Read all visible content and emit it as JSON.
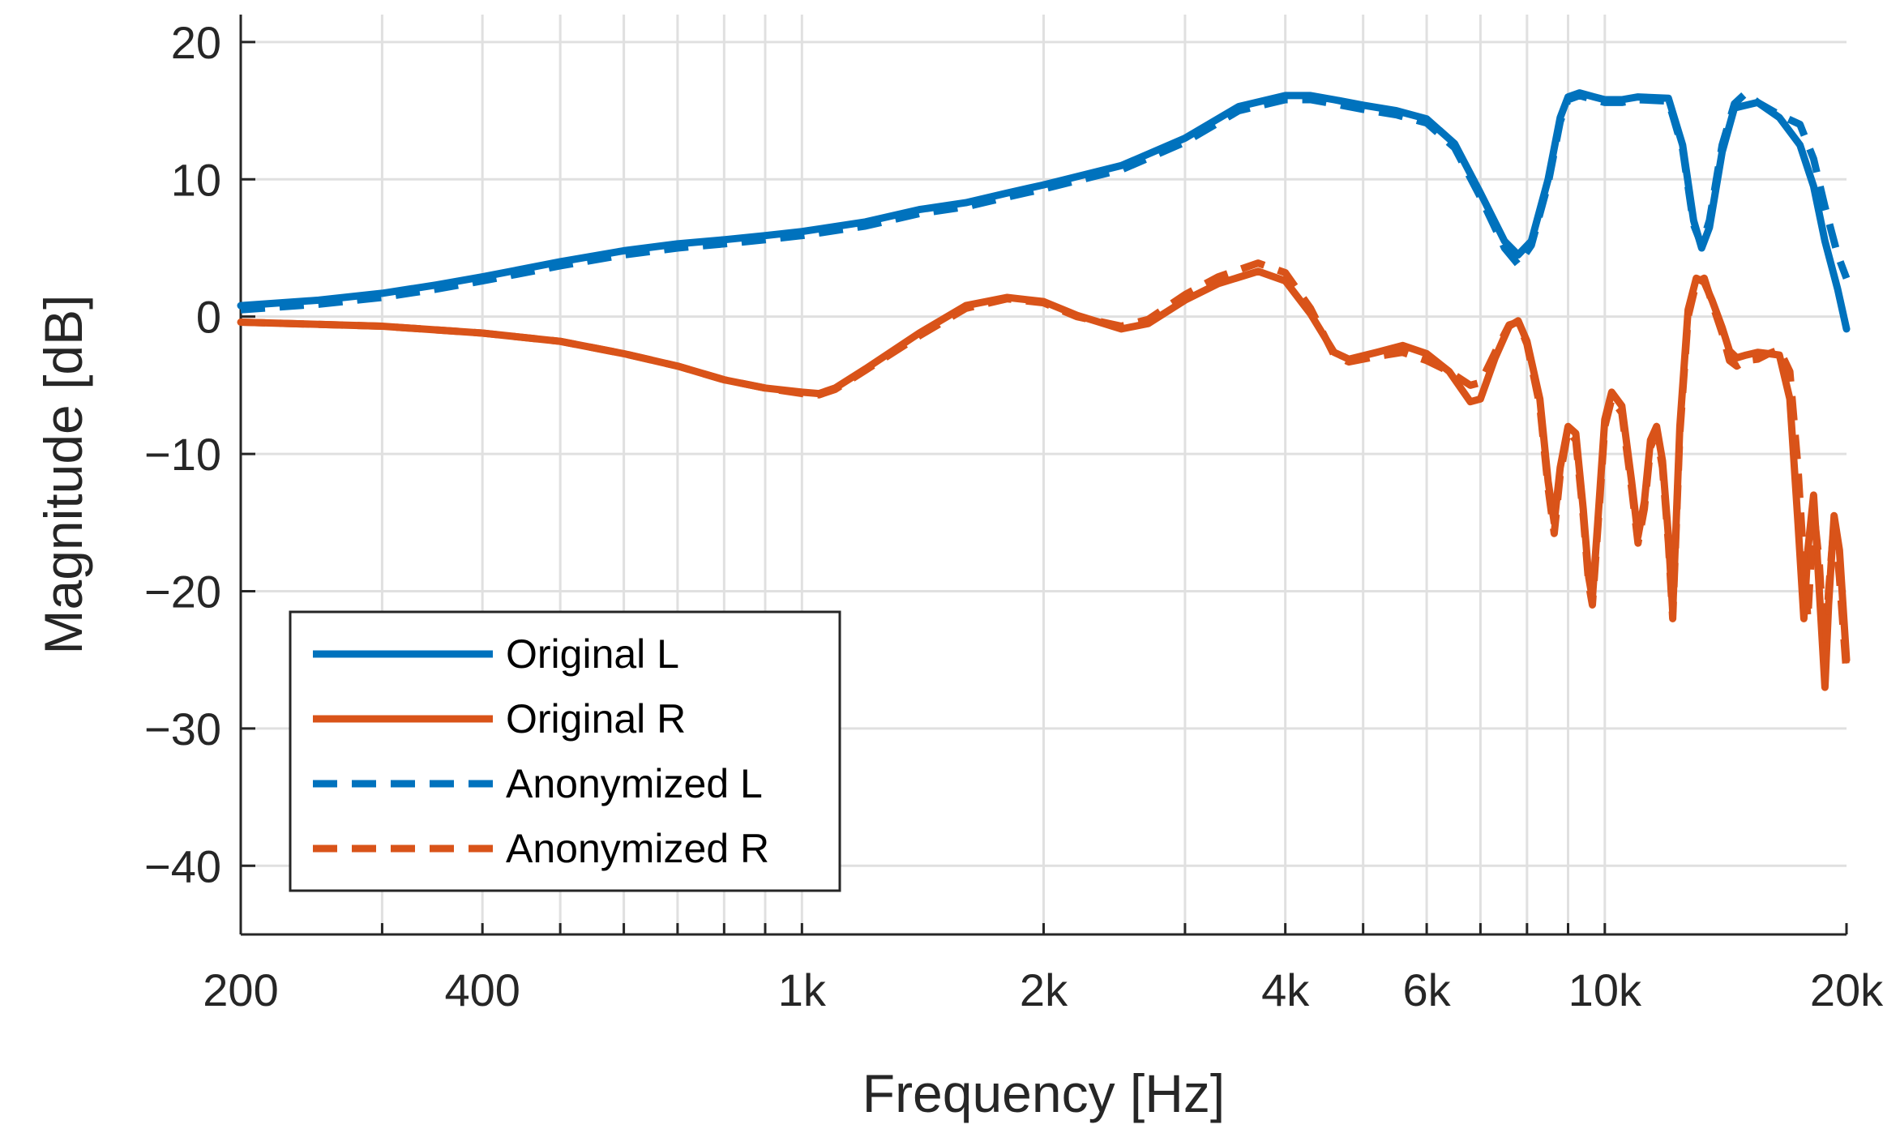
{
  "chart_data": {
    "type": "line",
    "title": "",
    "xlabel": "Frequency [Hz]",
    "ylabel": "Magnitude [dB]",
    "xscale": "log",
    "xlim": [
      200,
      20000
    ],
    "ylim": [
      -45,
      22
    ],
    "grid": true,
    "legend_position": "bottom-left",
    "x_ticks": [
      200,
      300,
      400,
      500,
      600,
      700,
      800,
      900,
      1000,
      2000,
      3000,
      4000,
      5000,
      6000,
      7000,
      8000,
      9000,
      10000,
      20000
    ],
    "x_tick_labels": [
      {
        "value": 200,
        "label": "200"
      },
      {
        "value": 400,
        "label": "400"
      },
      {
        "value": 1000,
        "label": "1k"
      },
      {
        "value": 2000,
        "label": "2k"
      },
      {
        "value": 4000,
        "label": "4k"
      },
      {
        "value": 6000,
        "label": "6k"
      },
      {
        "value": 10000,
        "label": "10k"
      },
      {
        "value": 20000,
        "label": "20k"
      }
    ],
    "y_tick_labels": [
      {
        "value": 20,
        "label": "20"
      },
      {
        "value": 10,
        "label": "10"
      },
      {
        "value": 0,
        "label": "0"
      },
      {
        "value": -10,
        "label": "−10"
      },
      {
        "value": -20,
        "label": "−20"
      },
      {
        "value": -30,
        "label": "−30"
      },
      {
        "value": -40,
        "label": "−40"
      }
    ],
    "series": [
      {
        "name": "Original L",
        "color": "#0072BD",
        "dashed": false,
        "points": [
          [
            200,
            0.8
          ],
          [
            250,
            1.2
          ],
          [
            300,
            1.7
          ],
          [
            350,
            2.3
          ],
          [
            400,
            2.9
          ],
          [
            500,
            4.0
          ],
          [
            600,
            4.8
          ],
          [
            700,
            5.3
          ],
          [
            800,
            5.6
          ],
          [
            900,
            5.9
          ],
          [
            1000,
            6.2
          ],
          [
            1200,
            6.9
          ],
          [
            1400,
            7.8
          ],
          [
            1600,
            8.3
          ],
          [
            1800,
            9.0
          ],
          [
            2000,
            9.6
          ],
          [
            2500,
            11.0
          ],
          [
            3000,
            13.0
          ],
          [
            3500,
            15.3
          ],
          [
            4000,
            16.1
          ],
          [
            4300,
            16.1
          ],
          [
            4600,
            15.8
          ],
          [
            5000,
            15.4
          ],
          [
            5500,
            15.0
          ],
          [
            6000,
            14.4
          ],
          [
            6500,
            12.6
          ],
          [
            7000,
            9.0
          ],
          [
            7500,
            5.5
          ],
          [
            7800,
            4.5
          ],
          [
            8100,
            5.5
          ],
          [
            8500,
            10.0
          ],
          [
            8800,
            14.5
          ],
          [
            9000,
            16.0
          ],
          [
            9300,
            16.3
          ],
          [
            9700,
            16.0
          ],
          [
            10000,
            15.8
          ],
          [
            10500,
            15.8
          ],
          [
            11000,
            16.0
          ],
          [
            12000,
            15.9
          ],
          [
            12500,
            12.5
          ],
          [
            12900,
            7.0
          ],
          [
            13200,
            5.0
          ],
          [
            13500,
            6.5
          ],
          [
            14000,
            12.0
          ],
          [
            14500,
            15.2
          ],
          [
            15500,
            15.6
          ],
          [
            16500,
            14.5
          ],
          [
            17500,
            12.5
          ],
          [
            18200,
            9.5
          ],
          [
            18800,
            5.5
          ],
          [
            19500,
            2.0
          ],
          [
            20000,
            -0.9
          ]
        ]
      },
      {
        "name": "Original R",
        "color": "#D95319",
        "dashed": false,
        "points": [
          [
            200,
            -0.4
          ],
          [
            300,
            -0.7
          ],
          [
            400,
            -1.2
          ],
          [
            500,
            -1.8
          ],
          [
            600,
            -2.7
          ],
          [
            700,
            -3.6
          ],
          [
            800,
            -4.6
          ],
          [
            900,
            -5.2
          ],
          [
            1000,
            -5.5
          ],
          [
            1050,
            -5.6
          ],
          [
            1100,
            -5.2
          ],
          [
            1200,
            -3.8
          ],
          [
            1400,
            -1.2
          ],
          [
            1600,
            0.8
          ],
          [
            1800,
            1.4
          ],
          [
            2000,
            1.1
          ],
          [
            2200,
            0.1
          ],
          [
            2500,
            -0.9
          ],
          [
            2700,
            -0.5
          ],
          [
            3000,
            1.2
          ],
          [
            3300,
            2.4
          ],
          [
            3700,
            3.3
          ],
          [
            4000,
            2.6
          ],
          [
            4300,
            0.2
          ],
          [
            4600,
            -2.6
          ],
          [
            4800,
            -3.1
          ],
          [
            5200,
            -2.6
          ],
          [
            5600,
            -2.1
          ],
          [
            6000,
            -2.7
          ],
          [
            6400,
            -4.0
          ],
          [
            6800,
            -6.2
          ],
          [
            7000,
            -6.0
          ],
          [
            7300,
            -3.0
          ],
          [
            7600,
            -0.7
          ],
          [
            7800,
            -0.3
          ],
          [
            8000,
            -1.8
          ],
          [
            8300,
            -6.0
          ],
          [
            8500,
            -12.0
          ],
          [
            8650,
            -15.0
          ],
          [
            8800,
            -11.0
          ],
          [
            9000,
            -8.0
          ],
          [
            9200,
            -8.5
          ],
          [
            9400,
            -14.0
          ],
          [
            9550,
            -19.0
          ],
          [
            9650,
            -20.5
          ],
          [
            9800,
            -15.0
          ],
          [
            10000,
            -7.5
          ],
          [
            10200,
            -5.5
          ],
          [
            10500,
            -6.5
          ],
          [
            10800,
            -12.0
          ],
          [
            11000,
            -16.0
          ],
          [
            11200,
            -13.5
          ],
          [
            11400,
            -9.0
          ],
          [
            11600,
            -8.0
          ],
          [
            11800,
            -10.5
          ],
          [
            12000,
            -16.0
          ],
          [
            12150,
            -21.5
          ],
          [
            12400,
            -8.0
          ],
          [
            12700,
            0.5
          ],
          [
            13000,
            2.8
          ],
          [
            13300,
            2.5
          ],
          [
            13600,
            1.2
          ],
          [
            14000,
            -0.8
          ],
          [
            14300,
            -2.5
          ],
          [
            14600,
            -3.0
          ],
          [
            15000,
            -2.8
          ],
          [
            15500,
            -2.6
          ],
          [
            16000,
            -2.7
          ],
          [
            16500,
            -2.8
          ],
          [
            17000,
            -6.0
          ],
          [
            17400,
            -15.0
          ],
          [
            17700,
            -22.0
          ],
          [
            17900,
            -17.0
          ],
          [
            18200,
            -13.0
          ],
          [
            18500,
            -20.0
          ],
          [
            18800,
            -27.0
          ],
          [
            19000,
            -21.0
          ],
          [
            19300,
            -14.5
          ],
          [
            19600,
            -17.0
          ],
          [
            20000,
            -25.0
          ]
        ]
      },
      {
        "name": "Anonymized L",
        "color": "#0072BD",
        "dashed": true,
        "points": [
          [
            200,
            0.5
          ],
          [
            250,
            0.9
          ],
          [
            300,
            1.4
          ],
          [
            350,
            2.0
          ],
          [
            400,
            2.6
          ],
          [
            500,
            3.7
          ],
          [
            600,
            4.5
          ],
          [
            700,
            5.0
          ],
          [
            800,
            5.3
          ],
          [
            900,
            5.6
          ],
          [
            1000,
            5.9
          ],
          [
            1200,
            6.6
          ],
          [
            1400,
            7.5
          ],
          [
            1600,
            8.0
          ],
          [
            1800,
            8.7
          ],
          [
            2000,
            9.3
          ],
          [
            2500,
            10.7
          ],
          [
            3000,
            12.7
          ],
          [
            3500,
            15.0
          ],
          [
            4000,
            15.8
          ],
          [
            4300,
            15.8
          ],
          [
            4600,
            15.5
          ],
          [
            5000,
            15.1
          ],
          [
            5500,
            14.7
          ],
          [
            6000,
            14.1
          ],
          [
            6500,
            12.3
          ],
          [
            7000,
            8.7
          ],
          [
            7500,
            5.0
          ],
          [
            7800,
            3.8
          ],
          [
            8100,
            5.2
          ],
          [
            8500,
            9.7
          ],
          [
            8800,
            14.2
          ],
          [
            9000,
            15.8
          ],
          [
            9300,
            16.1
          ],
          [
            9700,
            15.8
          ],
          [
            10000,
            15.6
          ],
          [
            10500,
            15.6
          ],
          [
            11000,
            15.8
          ],
          [
            12000,
            15.7
          ],
          [
            12500,
            12.2
          ],
          [
            12900,
            6.7
          ],
          [
            13200,
            5.2
          ],
          [
            13500,
            7.0
          ],
          [
            14000,
            12.5
          ],
          [
            14500,
            15.5
          ],
          [
            15000,
            16.3
          ],
          [
            15500,
            15.6
          ],
          [
            16500,
            14.7
          ],
          [
            17500,
            14.0
          ],
          [
            18200,
            11.5
          ],
          [
            18800,
            8.0
          ],
          [
            19500,
            4.5
          ],
          [
            20000,
            2.8
          ]
        ]
      },
      {
        "name": "Anonymized R",
        "color": "#D95319",
        "dashed": true,
        "points": [
          [
            200,
            -0.4
          ],
          [
            300,
            -0.7
          ],
          [
            400,
            -1.2
          ],
          [
            500,
            -1.8
          ],
          [
            600,
            -2.7
          ],
          [
            700,
            -3.6
          ],
          [
            800,
            -4.6
          ],
          [
            900,
            -5.2
          ],
          [
            1000,
            -5.6
          ],
          [
            1050,
            -5.7
          ],
          [
            1100,
            -5.3
          ],
          [
            1200,
            -3.9
          ],
          [
            1400,
            -1.4
          ],
          [
            1600,
            0.6
          ],
          [
            1800,
            1.3
          ],
          [
            2000,
            1.0
          ],
          [
            2200,
            0.0
          ],
          [
            2500,
            -0.7
          ],
          [
            2700,
            -0.2
          ],
          [
            3000,
            1.6
          ],
          [
            3300,
            2.9
          ],
          [
            3700,
            3.9
          ],
          [
            4000,
            3.2
          ],
          [
            4300,
            0.6
          ],
          [
            4600,
            -2.8
          ],
          [
            4800,
            -3.3
          ],
          [
            5200,
            -2.9
          ],
          [
            5600,
            -2.6
          ],
          [
            6000,
            -3.2
          ],
          [
            6400,
            -4.0
          ],
          [
            6800,
            -5.0
          ],
          [
            7000,
            -4.8
          ],
          [
            7300,
            -2.6
          ],
          [
            7600,
            -0.6
          ],
          [
            7800,
            -0.4
          ],
          [
            8000,
            -2.0
          ],
          [
            8300,
            -6.5
          ],
          [
            8500,
            -12.5
          ],
          [
            8650,
            -15.8
          ],
          [
            8800,
            -11.5
          ],
          [
            9000,
            -8.3
          ],
          [
            9200,
            -9.0
          ],
          [
            9400,
            -14.5
          ],
          [
            9550,
            -19.5
          ],
          [
            9650,
            -21.0
          ],
          [
            9800,
            -15.5
          ],
          [
            10000,
            -8.0
          ],
          [
            10200,
            -6.0
          ],
          [
            10500,
            -7.0
          ],
          [
            10800,
            -12.5
          ],
          [
            11000,
            -16.5
          ],
          [
            11200,
            -14.0
          ],
          [
            11400,
            -9.5
          ],
          [
            11600,
            -8.5
          ],
          [
            11800,
            -11.0
          ],
          [
            12000,
            -16.5
          ],
          [
            12150,
            -22.0
          ],
          [
            12400,
            -8.5
          ],
          [
            12700,
            0.0
          ],
          [
            13000,
            2.5
          ],
          [
            13300,
            2.8
          ],
          [
            13600,
            1.0
          ],
          [
            14000,
            -1.2
          ],
          [
            14300,
            -3.2
          ],
          [
            14600,
            -3.6
          ],
          [
            15000,
            -3.2
          ],
          [
            15500,
            -3.1
          ],
          [
            16000,
            -2.7
          ],
          [
            16500,
            -2.4
          ],
          [
            17000,
            -4.0
          ],
          [
            17400,
            -11.0
          ],
          [
            17700,
            -18.0
          ],
          [
            17900,
            -22.0
          ],
          [
            18200,
            -14.0
          ],
          [
            18500,
            -18.0
          ],
          [
            18800,
            -25.0
          ],
          [
            19000,
            -20.0
          ],
          [
            19300,
            -15.0
          ],
          [
            19600,
            -19.0
          ],
          [
            20000,
            -26.0
          ]
        ]
      }
    ]
  }
}
